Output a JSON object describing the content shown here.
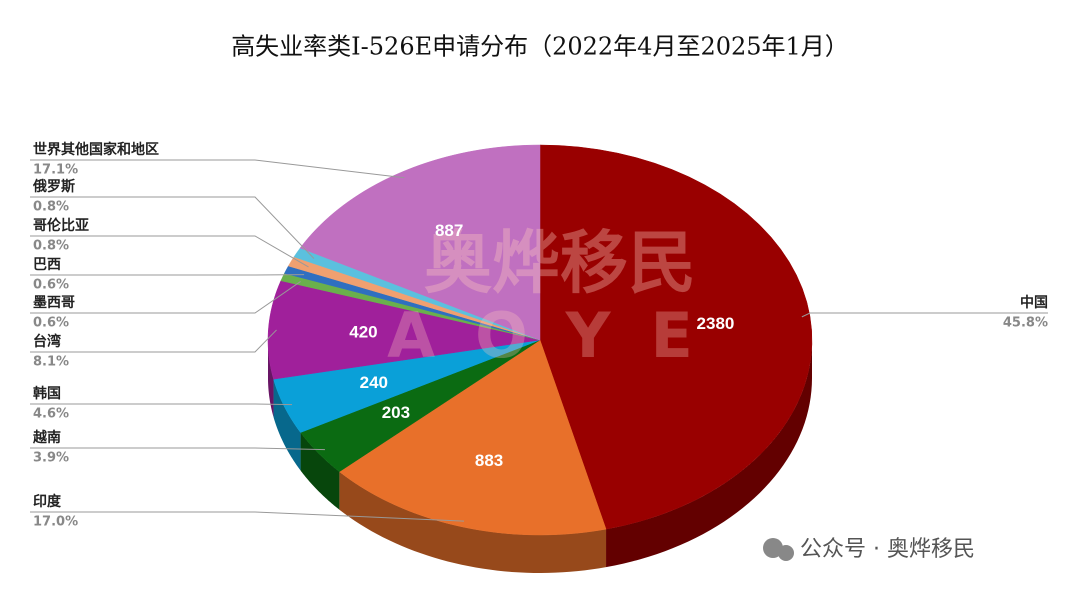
{
  "chart_data": {
    "type": "pie",
    "title": "高失业率类I-526E申请分布（2022年4月至2025年1月）",
    "categories": [
      "中国",
      "印度",
      "越南",
      "韩国",
      "台湾",
      "墨西哥",
      "巴西",
      "哥伦比亚",
      "俄罗斯",
      "世界其他国家和地区"
    ],
    "values": [
      2380,
      883,
      203,
      240,
      420,
      33,
      33,
      42,
      42,
      887
    ],
    "value_labels": [
      "2380",
      "883",
      "203",
      "240",
      "420",
      null,
      null,
      null,
      null,
      "887"
    ],
    "shares": [
      45.8,
      17.0,
      3.9,
      4.6,
      8.1,
      0.6,
      0.6,
      0.8,
      0.8,
      17.1
    ],
    "share_labels": [
      "45.8%",
      "17.0%",
      "3.9%",
      "4.6%",
      "8.1%",
      "0.6%",
      "0.6%",
      "0.8%",
      "0.8%",
      "17.1%"
    ],
    "colors": [
      "#990000",
      "#e8702a",
      "#0b6b12",
      "#0aa0d8",
      "#a0209b",
      "#6ab04c",
      "#2f6fc0",
      "#f0a070",
      "#5bc0de",
      "#c070c0"
    ],
    "watermark": [
      "奥烨移民",
      "AOYE"
    ]
  },
  "footer": "公众号 · 奥烨移民"
}
